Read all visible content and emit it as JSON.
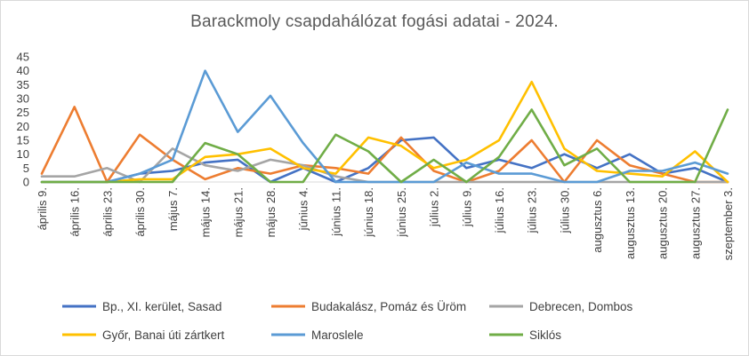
{
  "chart_data": {
    "type": "line",
    "title": "Barackmoly csapdahálózat fogási adatai - 2024.",
    "xlabel": "",
    "ylabel": "",
    "ylim": [
      0,
      45
    ],
    "yticks": [
      0,
      5,
      10,
      15,
      20,
      25,
      30,
      35,
      40,
      45
    ],
    "grid": false,
    "legend": "bottom",
    "categories": [
      "április 9.",
      "április 16.",
      "április 23.",
      "április 30.",
      "május 7.",
      "május 14.",
      "május 21.",
      "május 28.",
      "június 4.",
      "június 11.",
      "június 18.",
      "június 25.",
      "július 2.",
      "július 9.",
      "július 16.",
      "július 23.",
      "július 30.",
      "augusztus 6.",
      "augusztus 13.",
      "augusztus 20.",
      "augusztus 27.",
      "szeptember 3."
    ],
    "series": [
      {
        "name": "Bp., XI. kerület, Sasad",
        "color": "#4472c4",
        "values": [
          0,
          0,
          0,
          3,
          4,
          7,
          8,
          0,
          5,
          0,
          5,
          15,
          16,
          5,
          8,
          5,
          10,
          5,
          10,
          3,
          5,
          0
        ]
      },
      {
        "name": "Budakalász, Pomáz és Üröm",
        "color": "#ed7d31",
        "values": [
          3,
          27,
          0,
          17,
          8,
          1,
          5,
          3,
          6,
          5,
          3,
          16,
          4,
          0,
          4,
          15,
          0,
          15,
          6,
          3,
          0,
          0
        ]
      },
      {
        "name": "Debrecen, Dombos",
        "color": "#a5a5a5",
        "values": [
          2,
          2,
          5,
          0,
          12,
          6,
          4,
          8,
          6,
          2,
          0,
          0,
          0,
          0,
          0,
          0,
          0,
          0,
          0,
          0,
          0,
          0
        ]
      },
      {
        "name": "Győr, Banai úti zártkert",
        "color": "#ffc000",
        "values": [
          0,
          0,
          0,
          1,
          1,
          9,
          10,
          12,
          5,
          3,
          16,
          13,
          5,
          8,
          15,
          36,
          12,
          4,
          3,
          2,
          11,
          0
        ]
      },
      {
        "name": "Maroslele",
        "color": "#5b9bd5",
        "values": [
          0,
          0,
          0,
          3,
          8,
          40,
          18,
          31,
          14,
          0,
          0,
          0,
          0,
          7,
          3,
          3,
          0,
          0,
          4,
          4,
          7,
          3
        ]
      },
      {
        "name": "Siklós",
        "color": "#70ad47",
        "values": [
          0,
          0,
          0,
          0,
          0,
          14,
          10,
          0,
          0,
          17,
          11,
          0,
          8,
          0,
          9,
          26,
          6,
          12,
          0,
          0,
          0,
          26
        ]
      }
    ]
  }
}
